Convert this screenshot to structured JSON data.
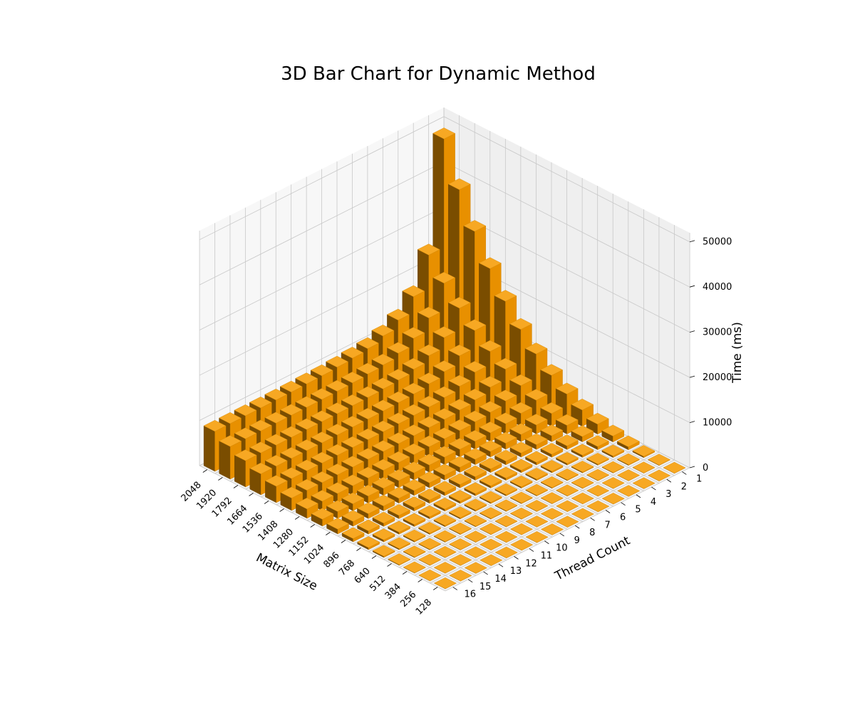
{
  "chart_data": {
    "type": "bar3d",
    "title": "3D Bar Chart for Dynamic Method",
    "xlabel": "Matrix Size",
    "ylabel": "Thread Count",
    "zlabel": "Time (ms)",
    "matrix_sizes": [
      128,
      256,
      384,
      512,
      640,
      768,
      896,
      1024,
      1152,
      1280,
      1408,
      1536,
      1664,
      1792,
      1920,
      2048
    ],
    "thread_counts": [
      1,
      2,
      3,
      4,
      5,
      6,
      7,
      8,
      9,
      10,
      11,
      12,
      13,
      14,
      15,
      16
    ],
    "z_ticks": [
      0,
      10000,
      20000,
      30000,
      40000,
      50000
    ],
    "zlim": [
      0,
      52000
    ],
    "bar_color": "#ff9f00",
    "pane_color": "#f2f2f2",
    "grid": true,
    "series": [
      {
        "thread": 1,
        "values": [
          10,
          80,
          280,
          650,
          1300,
          2200,
          3600,
          5400,
          7800,
          10800,
          14500,
          19000,
          24500,
          31000,
          38500,
          48000
        ]
      },
      {
        "thread": 2,
        "values": [
          6,
          40,
          150,
          340,
          680,
          1150,
          1900,
          2800,
          4000,
          5500,
          7400,
          9600,
          12500,
          15700,
          19500,
          24000
        ]
      },
      {
        "thread": 3,
        "values": [
          5,
          30,
          105,
          240,
          470,
          800,
          1300,
          1950,
          2800,
          3800,
          5100,
          6700,
          8600,
          10900,
          13500,
          16500
        ]
      },
      {
        "thread": 4,
        "values": [
          4,
          25,
          85,
          190,
          370,
          640,
          1030,
          1550,
          2200,
          3000,
          4000,
          5300,
          6800,
          8600,
          10700,
          13000
        ]
      },
      {
        "thread": 5,
        "values": [
          4,
          22,
          75,
          165,
          320,
          550,
          880,
          1320,
          1900,
          2600,
          3450,
          4500,
          5800,
          7300,
          9100,
          11200
        ]
      },
      {
        "thread": 6,
        "values": [
          4,
          20,
          70,
          150,
          290,
          500,
          800,
          1200,
          1720,
          2350,
          3100,
          4100,
          5250,
          6600,
          8200,
          10100
        ]
      },
      {
        "thread": 7,
        "values": [
          4,
          19,
          66,
          145,
          280,
          480,
          770,
          1150,
          1650,
          2250,
          3000,
          3950,
          5050,
          6350,
          7900,
          9700
        ]
      },
      {
        "thread": 8,
        "values": [
          4,
          19,
          64,
          140,
          270,
          465,
          745,
          1110,
          1600,
          2180,
          2900,
          3800,
          4900,
          6150,
          7650,
          9400
        ]
      },
      {
        "thread": 9,
        "values": [
          4,
          18,
          63,
          138,
          265,
          455,
          730,
          1090,
          1570,
          2140,
          2850,
          3740,
          4800,
          6050,
          7500,
          9200
        ]
      },
      {
        "thread": 10,
        "values": [
          4,
          18,
          62,
          136,
          262,
          450,
          720,
          1080,
          1550,
          2110,
          2810,
          3690,
          4740,
          5970,
          7400,
          9100
        ]
      },
      {
        "thread": 11,
        "values": [
          4,
          18,
          62,
          135,
          260,
          445,
          715,
          1070,
          1540,
          2090,
          2790,
          3660,
          4700,
          5920,
          7340,
          9000
        ]
      },
      {
        "thread": 12,
        "values": [
          4,
          18,
          61,
          134,
          258,
          442,
          710,
          1060,
          1530,
          2080,
          2770,
          3640,
          4670,
          5880,
          7300,
          8950
        ]
      },
      {
        "thread": 13,
        "values": [
          4,
          18,
          61,
          133,
          256,
          440,
          706,
          1055,
          1520,
          2070,
          2760,
          3620,
          4650,
          5850,
          7260,
          8900
        ]
      },
      {
        "thread": 14,
        "values": [
          4,
          18,
          61,
          133,
          255,
          438,
          703,
          1050,
          1515,
          2060,
          2750,
          3610,
          4630,
          5830,
          7230,
          8870
        ]
      },
      {
        "thread": 15,
        "values": [
          4,
          18,
          60,
          132,
          254,
          436,
          700,
          1045,
          1510,
          2055,
          2740,
          3600,
          4620,
          5810,
          7210,
          8850
        ]
      },
      {
        "thread": 16,
        "values": [
          4,
          18,
          60,
          132,
          253,
          435,
          698,
          1040,
          1505,
          2050,
          2730,
          3590,
          4610,
          5800,
          7200,
          8830
        ]
      }
    ]
  }
}
